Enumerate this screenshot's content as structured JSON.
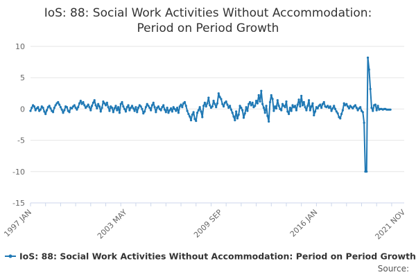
{
  "chart_data": {
    "type": "line",
    "title_lines": [
      "IoS: 88: Social Work Activities Without Accommodation:",
      "Period on Period Growth"
    ],
    "ylim": [
      -15,
      10
    ],
    "yticks": [
      -15,
      -10,
      -5,
      0,
      5,
      10
    ],
    "x_tick_labels": [
      "1997 JAN",
      "2003 MAY",
      "2009 SEP",
      "2016 JAN",
      "2021 NOV"
    ],
    "x_range_months": [
      0,
      298
    ],
    "x_tick_positions_months": [
      0,
      76,
      152,
      228,
      298
    ],
    "legend": "IoS: 88: Social Work Activities Without Accommodation: Period on Period Growth",
    "source_label": "Source:",
    "colors": {
      "series": "#1f78b4",
      "grid": "#e6e6e6",
      "axis": "#ccd6eb"
    },
    "series": [
      {
        "name": "IoS: 88: Social Work Activities Without Accommodation: Period on Period Growth",
        "values": [
          -0.3,
          0.2,
          0.6,
          0.4,
          -0.2,
          0.1,
          0.3,
          -0.3,
          -0.1,
          0.4,
          0.2,
          -0.4,
          -0.8,
          -0.2,
          0.3,
          0.5,
          0.1,
          -0.3,
          -0.5,
          0.2,
          0.6,
          0.9,
          1.1,
          0.7,
          0.3,
          -0.1,
          -0.6,
          -0.2,
          0.4,
          0.3,
          -0.3,
          -0.5,
          0.2,
          0.1,
          0.4,
          0.6,
          0.2,
          -0.1,
          0.3,
          0.9,
          1.3,
          0.8,
          1.1,
          0.6,
          0.2,
          0.4,
          0.7,
          0.3,
          -0.2,
          0.5,
          1.0,
          1.4,
          0.6,
          0.1,
          0.8,
          0.4,
          -0.4,
          0.2,
          1.2,
          0.9,
          0.6,
          1.0,
          0.3,
          -0.3,
          0.4,
          0.2,
          -0.5,
          0.1,
          0.5,
          -0.2,
          0.3,
          -0.6,
          0.8,
          1.1,
          0.4,
          0.0,
          -0.4,
          0.3,
          0.6,
          -0.2,
          0.2,
          0.5,
          0.1,
          -0.3,
          0.3,
          -0.5,
          0.2,
          0.6,
          0.4,
          0.0,
          -0.7,
          -0.4,
          0.3,
          0.8,
          0.5,
          0.2,
          -0.2,
          0.6,
          1.0,
          0.3,
          -0.5,
          0.2,
          0.4,
          0.0,
          -0.2,
          0.3,
          0.6,
          -0.1,
          -0.5,
          0.2,
          -0.6,
          -0.2,
          0.1,
          -0.4,
          0.3,
          0.0,
          -0.3,
          0.2,
          -0.6,
          0.4,
          0.7,
          0.3,
          0.9,
          1.1,
          0.5,
          -0.3,
          -0.8,
          -1.2,
          -1.8,
          -0.9,
          -0.5,
          -1.6,
          -1.9,
          -0.6,
          -0.2,
          0.3,
          -0.4,
          -1.3,
          0.5,
          1.0,
          0.4,
          0.9,
          1.8,
          0.6,
          0.2,
          0.4,
          1.3,
          0.8,
          0.3,
          0.9,
          2.5,
          1.9,
          1.6,
          0.8,
          0.4,
          1.0,
          1.2,
          0.7,
          0.2,
          0.5,
          -0.1,
          -0.6,
          -1.2,
          -1.8,
          -0.4,
          -1.5,
          -0.9,
          0.5,
          0.2,
          -0.2,
          -1.4,
          -0.7,
          0.3,
          -0.3,
          0.8,
          1.1,
          0.6,
          1.0,
          0.3,
          0.5,
          1.3,
          0.9,
          2.2,
          1.2,
          2.9,
          0.8,
          0.2,
          -0.6,
          0.5,
          -1.1,
          -2.0,
          1.1,
          2.2,
          1.6,
          -0.3,
          0.4,
          0.1,
          1.4,
          0.5,
          0.0,
          -0.2,
          0.8,
          0.5,
          0.3,
          1.2,
          -0.4,
          -0.8,
          0.2,
          -0.3,
          0.6,
          0.3,
          0.5,
          -0.2,
          0.7,
          1.5,
          0.4,
          2.1,
          0.6,
          1.1,
          0.3,
          -0.2,
          0.5,
          1.4,
          -0.2,
          0.4,
          0.9,
          -1.0,
          -0.4,
          0.3,
          0.1,
          0.5,
          0.7,
          0.2,
          0.8,
          1.1,
          0.4,
          0.3,
          0.5,
          0.2,
          0.4,
          -0.3,
          0.1,
          0.5,
          0.0,
          -0.4,
          -0.7,
          -1.3,
          -1.5,
          -0.8,
          -0.2,
          0.9,
          0.6,
          0.8,
          0.4,
          0.1,
          0.5,
          0.3,
          0.1,
          0.4,
          0.6,
          0.2,
          -0.2,
          0.1,
          0.3,
          -0.3,
          -0.5,
          -2.2,
          -10.0,
          -10.0,
          8.2,
          6.3,
          3.2,
          0.2,
          -0.3,
          0.6,
          0.7,
          -0.2,
          0.5,
          -0.1,
          0.0,
          0.0,
          -0.1,
          0.0,
          0.0,
          -0.1,
          -0.1,
          -0.1,
          -0.1
        ]
      }
    ],
    "x_start_month": 0,
    "x_end_month": 287
  }
}
